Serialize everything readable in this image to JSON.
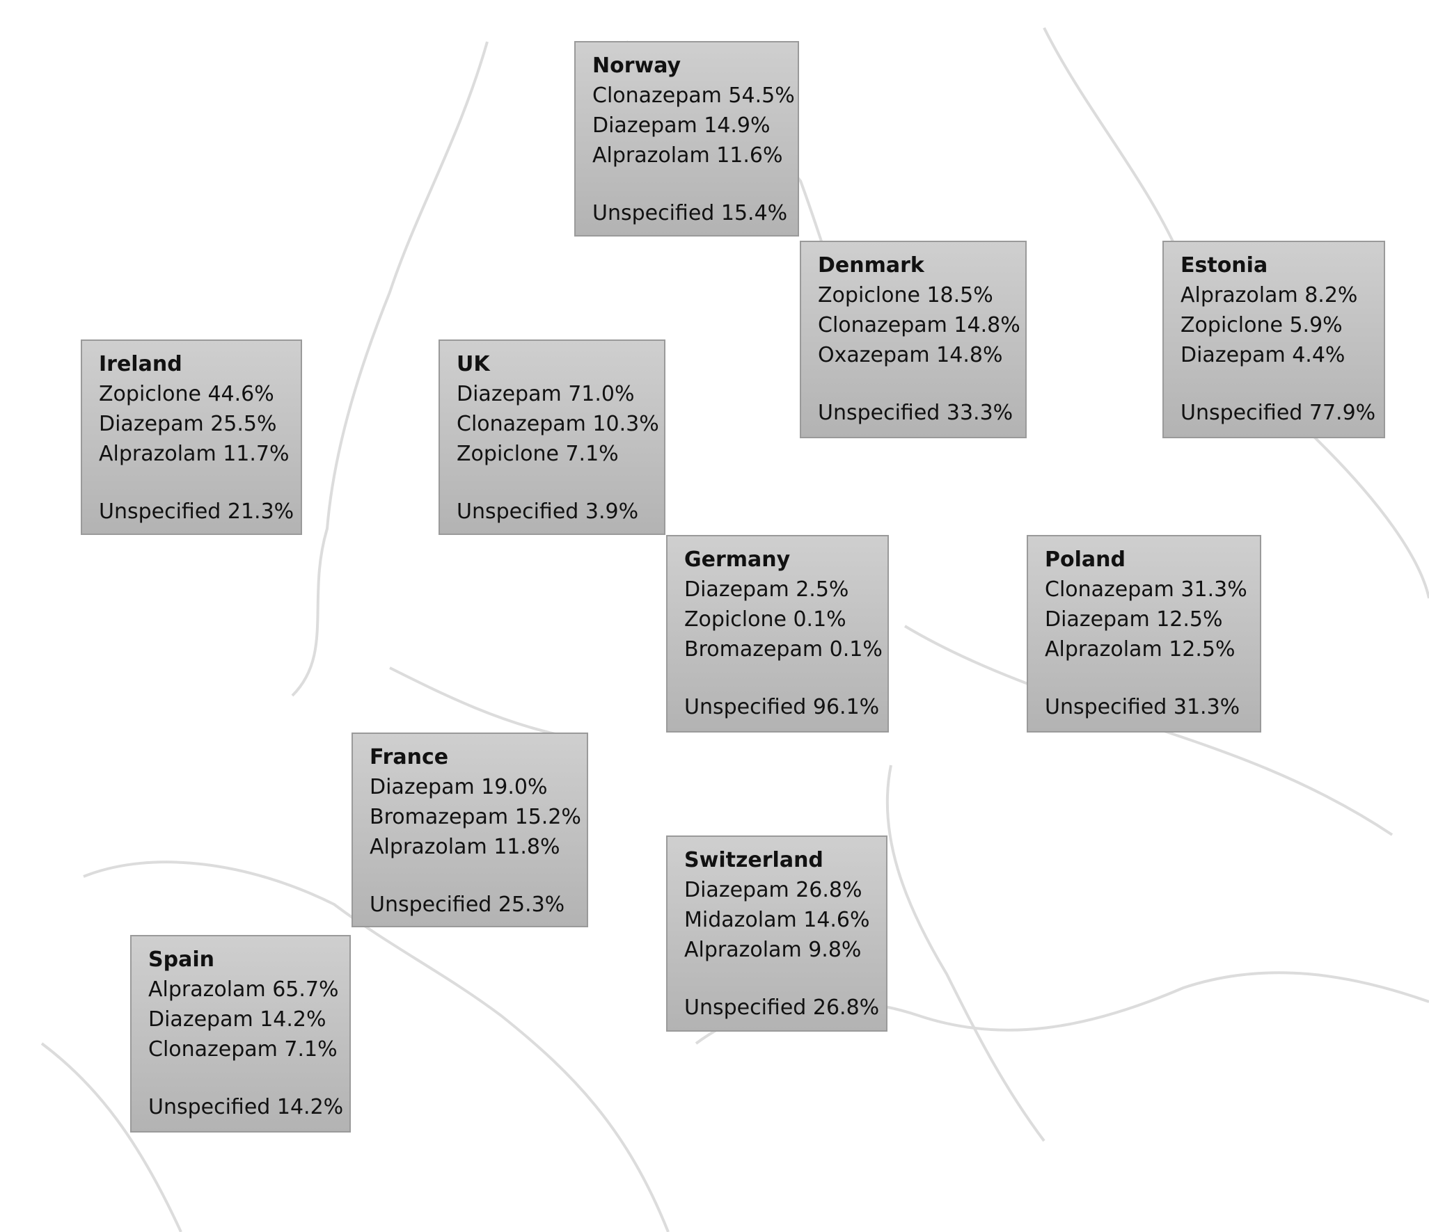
{
  "boxes": [
    {
      "country": "Norway",
      "lines": [
        "Clonazepam 54.5%",
        "Diazepam 14.9%",
        "Alprazolam 11.6%"
      ],
      "unspecified": "Unspecified 15.4%"
    },
    {
      "country": "Denmark",
      "lines": [
        "Zopiclone 18.5%",
        "Clonazepam 14.8%",
        "Oxazepam 14.8%"
      ],
      "unspecified": "Unspecified 33.3%"
    },
    {
      "country": "Estonia",
      "lines": [
        "Alprazolam 8.2%",
        "Zopiclone 5.9%",
        "Diazepam 4.4%"
      ],
      "unspecified": "Unspecified 77.9%"
    },
    {
      "country": "Ireland",
      "lines": [
        "Zopiclone 44.6%",
        "Diazepam 25.5%",
        "Alprazolam 11.7%"
      ],
      "unspecified": "Unspecified 21.3%"
    },
    {
      "country": "UK",
      "lines": [
        "Diazepam 71.0%",
        "Clonazepam 10.3%",
        "Zopiclone 7.1%"
      ],
      "unspecified": "Unspecified 3.9%"
    },
    {
      "country": "Germany",
      "lines": [
        "Diazepam 2.5%",
        "Zopiclone 0.1%",
        "Bromazepam 0.1%"
      ],
      "unspecified": "Unspecified 96.1%"
    },
    {
      "country": "Poland",
      "lines": [
        "Clonazepam 31.3%",
        "Diazepam 12.5%",
        "Alprazolam 12.5%"
      ],
      "unspecified": "Unspecified 31.3%"
    },
    {
      "country": "France",
      "lines": [
        "Diazepam 19.0%",
        "Bromazepam 15.2%",
        "Alprazolam 11.8%"
      ],
      "unspecified": "Unspecified 25.3%"
    },
    {
      "country": "Switzerland",
      "lines": [
        "Diazepam 26.8%",
        "Midazolam 14.6%",
        "Alprazolam 9.8%"
      ],
      "unspecified": "Unspecified 26.8%"
    },
    {
      "country": "Spain",
      "lines": [
        "Alprazolam 65.7%",
        "Diazepam 14.2%",
        "Clonazepam 7.1%"
      ],
      "unspecified": "Unspecified 14.2%"
    }
  ]
}
